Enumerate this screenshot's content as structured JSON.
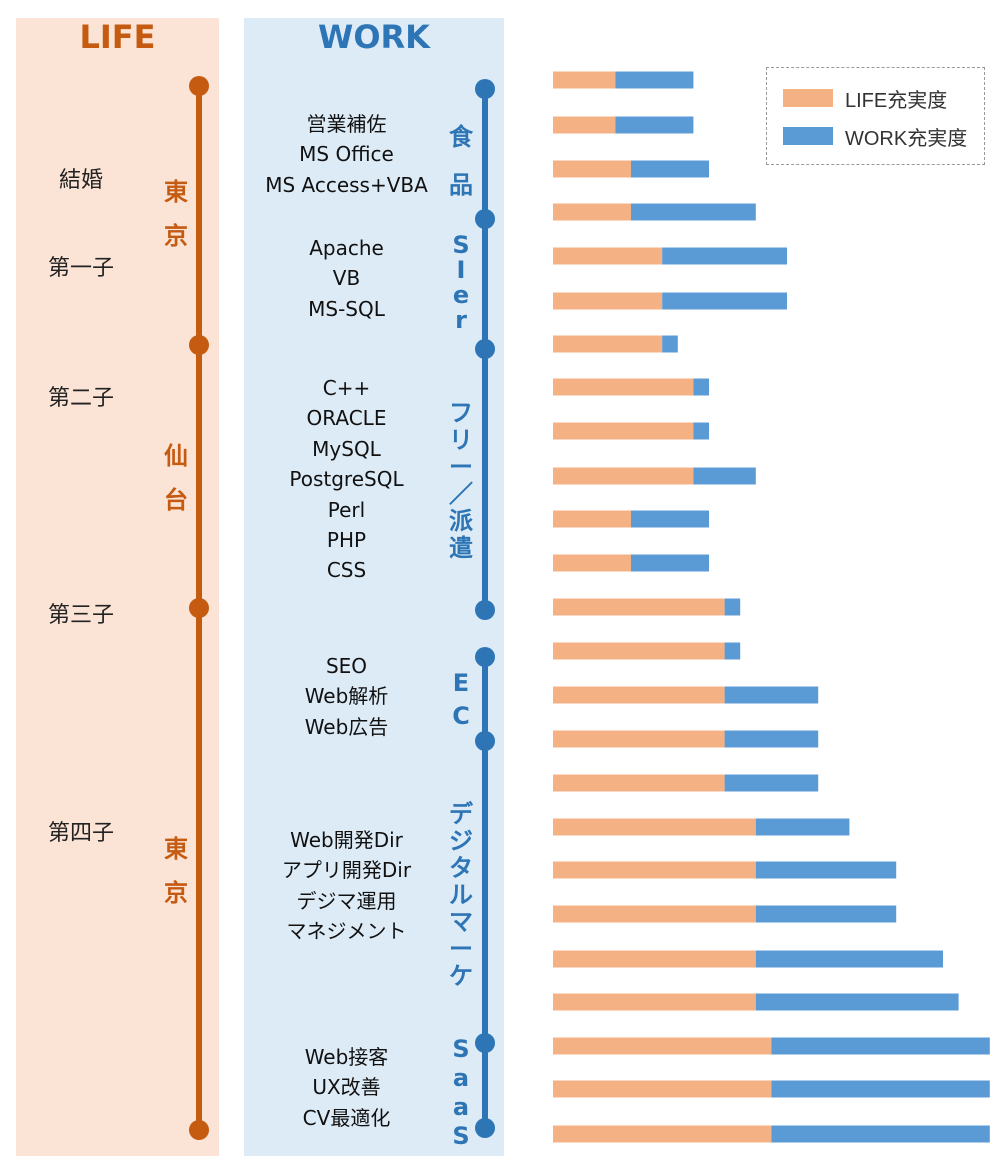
{
  "headers": {
    "life": "LIFE",
    "work": "WORK"
  },
  "life_events": [
    "結婚",
    "第一子",
    "第二子",
    "第三子",
    "第四子"
  ],
  "life_places": [
    "東京",
    "仙台",
    "東京"
  ],
  "work_periods": [
    {
      "label": "食品",
      "skills": [
        "営業補佐",
        "MS Office",
        "MS Access+VBA"
      ]
    },
    {
      "label": "SIer",
      "skills": [
        "Apache",
        "VB",
        "MS-SQL"
      ]
    },
    {
      "label": "フリー／派遣",
      "skills": [
        "C++",
        "ORACLE",
        "MySQL",
        "PostgreSQL",
        "Perl",
        "PHP",
        "CSS"
      ]
    },
    {
      "label": "EC",
      "skills": [
        "SEO",
        "Web解析",
        "Web広告"
      ]
    },
    {
      "label": "デジタルマーケ",
      "skills": [
        "Web開発Dir",
        "アプリ開発Dir",
        "デジマ運用",
        "マネジメント"
      ]
    },
    {
      "label": "SaaS",
      "skills": [
        "Web接客",
        "UX改善",
        "CV最適化"
      ]
    }
  ],
  "colors": {
    "life": "#f4b183",
    "work": "#5b9bd5",
    "life_dark": "#c55a11",
    "work_dark": "#2e75b6"
  },
  "chart_data": {
    "type": "bar",
    "orientation": "horizontal",
    "stacked": true,
    "legend": "top-right",
    "grid": false,
    "series": [
      {
        "name": "LIFE充実度",
        "values": [
          4,
          4,
          5,
          5,
          7,
          7,
          7,
          9,
          9,
          9,
          5,
          5,
          11,
          11,
          11,
          11,
          11,
          13,
          13,
          13,
          13,
          13,
          14,
          14,
          14
        ]
      },
      {
        "name": "WORK充実度",
        "values": [
          5,
          5,
          5,
          8,
          8,
          8,
          1,
          1,
          1,
          4,
          5,
          5,
          1,
          1,
          6,
          6,
          6,
          6,
          9,
          9,
          12,
          13,
          14,
          14,
          14
        ]
      }
    ]
  }
}
